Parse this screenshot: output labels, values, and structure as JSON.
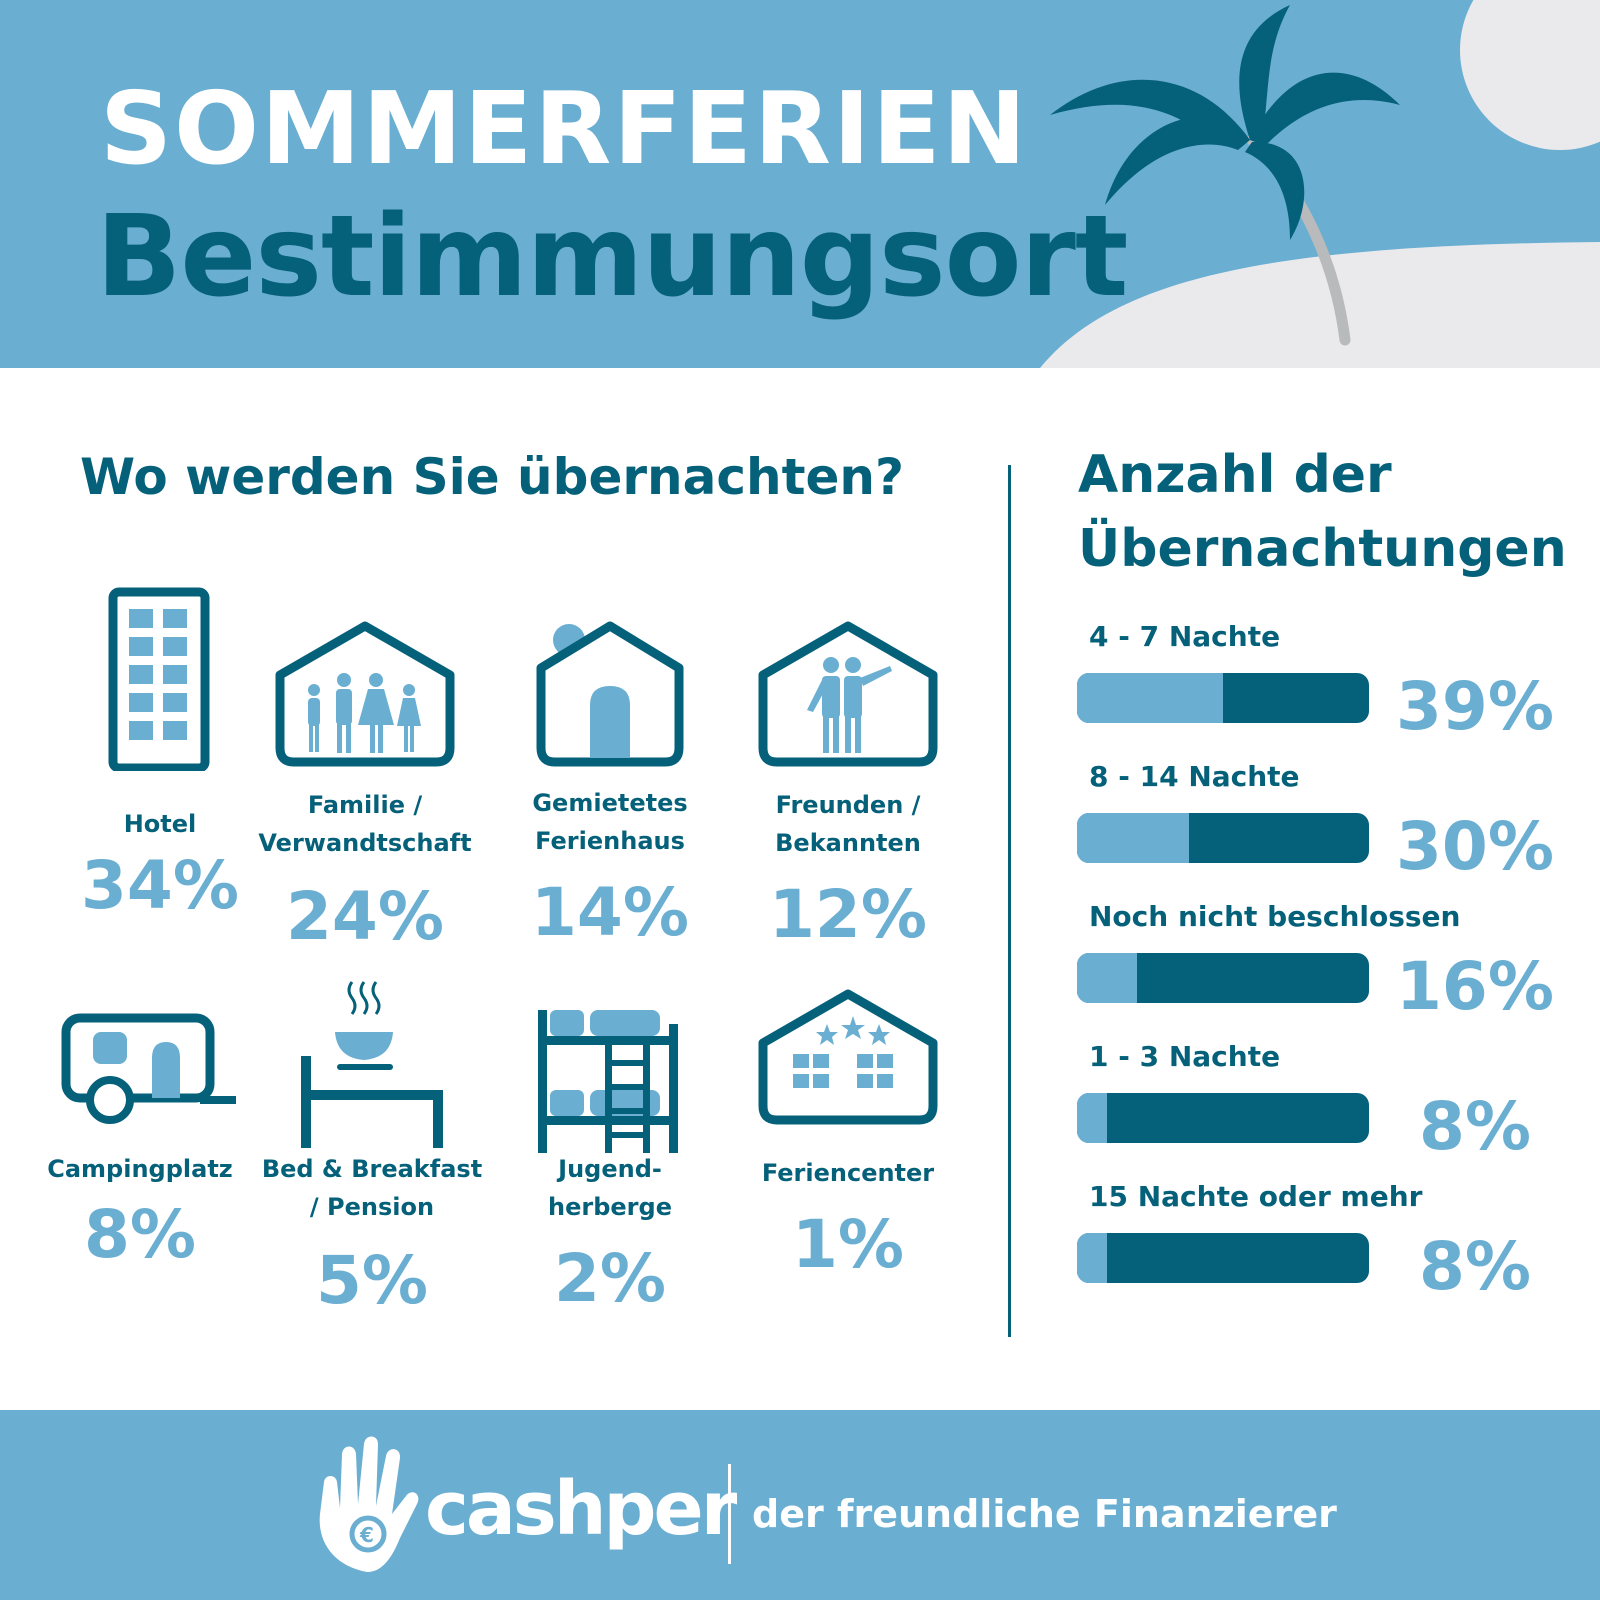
{
  "header": {
    "title_line1": "SOMMERFERIEN",
    "title_line2": "Bestimmungsort"
  },
  "left": {
    "question": "Wo werden Sie übernachten?",
    "items": [
      {
        "label": "Hotel",
        "pct": "34%",
        "icon": "hotel-icon"
      },
      {
        "label": "Familie /\nVerwandtschaft",
        "pct": "24%",
        "icon": "family-house-icon"
      },
      {
        "label": "Gemietetes\nFerienhaus",
        "pct": "14%",
        "icon": "holiday-house-icon"
      },
      {
        "label": "Freunden /\nBekannten",
        "pct": "12%",
        "icon": "friends-house-icon"
      },
      {
        "label": "Campingplatz",
        "pct": "8%",
        "icon": "caravan-icon"
      },
      {
        "label": "Bed & Breakfast\n/ Pension",
        "pct": "5%",
        "icon": "bed-breakfast-icon"
      },
      {
        "label": "Jugend-\nherberge",
        "pct": "2%",
        "icon": "bunk-bed-icon"
      },
      {
        "label": "Feriencenter",
        "pct": "1%",
        "icon": "holiday-center-icon"
      }
    ]
  },
  "right": {
    "question": "Anzahl der Übernachtungen"
  },
  "chart_data": {
    "type": "bar",
    "title": "Anzahl der Übernachtungen",
    "categories": [
      "4 - 7 Nachte",
      "8 - 14 Nachte",
      "Noch nicht beschlossen",
      "1 - 3 Nachte",
      "15 Nachte oder mehr"
    ],
    "values": [
      39,
      30,
      16,
      8,
      8
    ],
    "value_labels": [
      "39%",
      "30%",
      "16%",
      "8%",
      "8%"
    ],
    "ylim": [
      0,
      100
    ]
  },
  "footer": {
    "brand": "cashper",
    "tagline": "der freundliche Finanzierer"
  },
  "colors": {
    "light_blue": "#6aaed2",
    "dark_teal": "#05607a",
    "white": "#ffffff",
    "sand": "#eaeaec"
  }
}
